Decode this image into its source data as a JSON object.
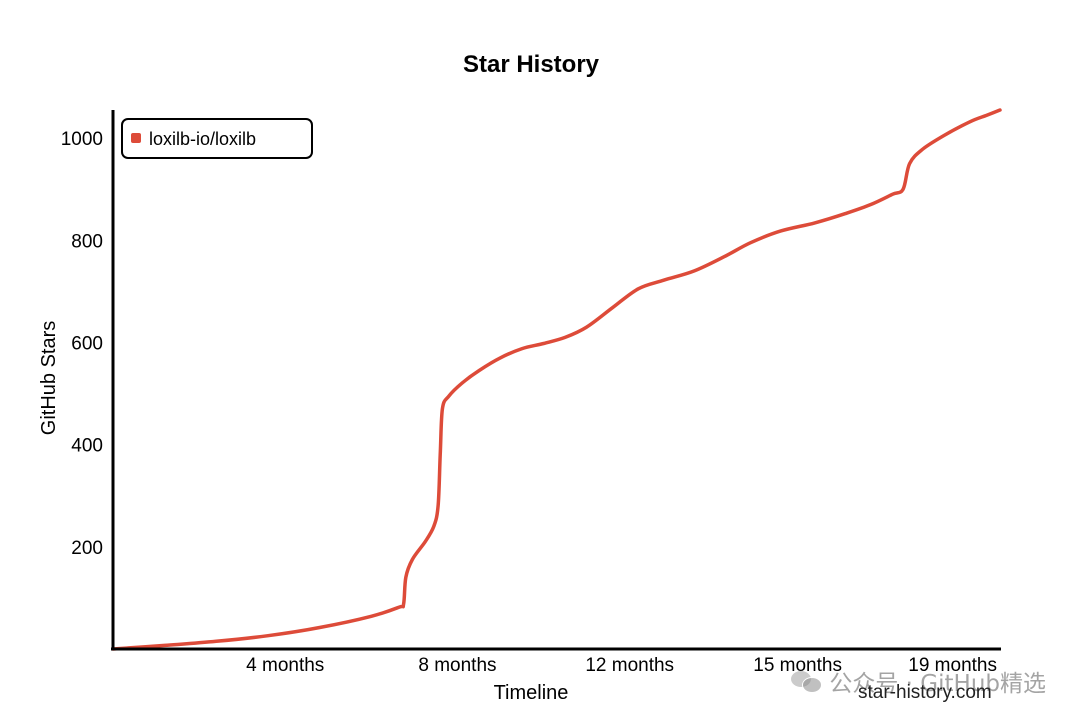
{
  "chart_data": {
    "type": "line",
    "title": "Star History",
    "xlabel": "Timeline",
    "ylabel": "GitHub Stars",
    "xlim": [
      0,
      20.6
    ],
    "ylim": [
      0,
      1055
    ],
    "x_ticks": [
      {
        "value": 4,
        "label": "4 months"
      },
      {
        "value": 8,
        "label": "8 months"
      },
      {
        "value": 12,
        "label": "12 months"
      },
      {
        "value": 15.9,
        "label": "15 months"
      },
      {
        "value": 19.5,
        "label": "19 months"
      }
    ],
    "y_ticks": [
      200,
      400,
      600,
      800,
      1000
    ],
    "legend": {
      "position": "top-left"
    },
    "series": [
      {
        "name": "loxilb-io/loxilb",
        "color": "#dd4b39",
        "points": [
          [
            0,
            0
          ],
          [
            1.2,
            7
          ],
          [
            2.4,
            15
          ],
          [
            3.6,
            26
          ],
          [
            4.8,
            42
          ],
          [
            6.0,
            64
          ],
          [
            6.65,
            82
          ],
          [
            6.75,
            88
          ],
          [
            6.8,
            140
          ],
          [
            6.95,
            175
          ],
          [
            7.25,
            210
          ],
          [
            7.45,
            240
          ],
          [
            7.55,
            280
          ],
          [
            7.6,
            380
          ],
          [
            7.65,
            470
          ],
          [
            7.8,
            495
          ],
          [
            8.1,
            520
          ],
          [
            8.5,
            545
          ],
          [
            9.0,
            570
          ],
          [
            9.5,
            588
          ],
          [
            10.0,
            598
          ],
          [
            10.5,
            610
          ],
          [
            11.0,
            630
          ],
          [
            11.6,
            668
          ],
          [
            12.2,
            705
          ],
          [
            12.8,
            722
          ],
          [
            13.5,
            740
          ],
          [
            14.2,
            768
          ],
          [
            14.8,
            795
          ],
          [
            15.5,
            818
          ],
          [
            16.3,
            834
          ],
          [
            17.0,
            852
          ],
          [
            17.6,
            870
          ],
          [
            18.1,
            890
          ],
          [
            18.35,
            900
          ],
          [
            18.5,
            950
          ],
          [
            18.8,
            978
          ],
          [
            19.3,
            1005
          ],
          [
            19.9,
            1032
          ],
          [
            20.3,
            1045
          ],
          [
            20.6,
            1055
          ]
        ]
      }
    ]
  },
  "watermark": {
    "text": "公众号 · GitHub精选",
    "site": "star-history.com"
  }
}
